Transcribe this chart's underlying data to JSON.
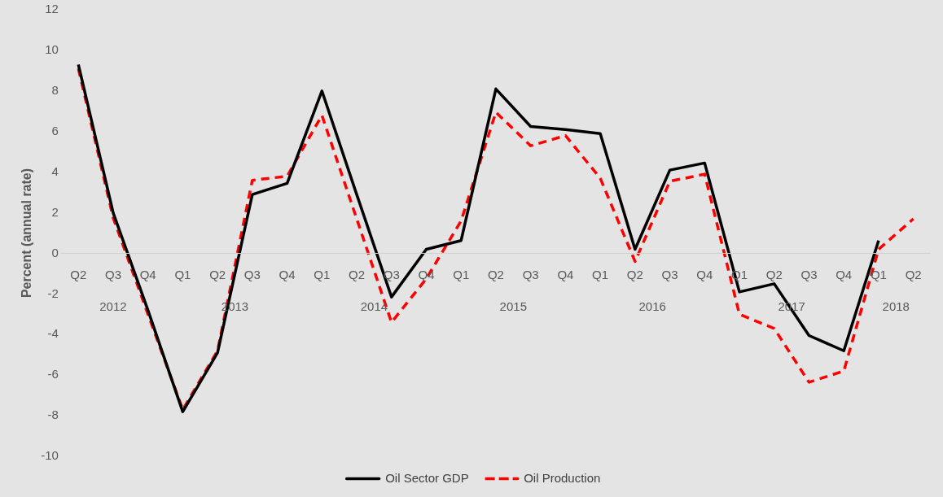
{
  "chart_data": {
    "type": "line",
    "ylabel": "Percent (annual rate)",
    "categories": [
      "Q2",
      "Q3",
      "Q4",
      "Q1",
      "Q2",
      "Q3",
      "Q4",
      "Q1",
      "Q2",
      "Q3",
      "Q4",
      "Q1",
      "Q2",
      "Q3",
      "Q4",
      "Q1",
      "Q2",
      "Q3",
      "Q4",
      "Q1",
      "Q2",
      "Q3",
      "Q4",
      "Q1",
      "Q2"
    ],
    "annotations": [
      "2012",
      "2013",
      "2014",
      "2015",
      "2016",
      "2017",
      "2018"
    ],
    "series": [
      {
        "name": "Oil Sector GDP",
        "color": "#000000",
        "line_style": "solid",
        "values": [
          9.3,
          2.0,
          -2.8,
          -7.8,
          -4.9,
          2.9,
          3.45,
          8.0,
          2.9,
          -2.15,
          0.2,
          0.63,
          8.1,
          6.25,
          6.1,
          5.9,
          0.2,
          4.1,
          4.45,
          -1.9,
          -1.5,
          -4.05,
          -4.8,
          0.63,
          null
        ]
      },
      {
        "name": "Oil Production",
        "color": "#ff0000",
        "line_style": "dashed",
        "values": [
          9.1,
          1.75,
          -3.0,
          -7.7,
          -4.8,
          3.6,
          3.8,
          6.8,
          1.7,
          -3.4,
          -1.25,
          1.6,
          6.95,
          5.3,
          5.8,
          3.7,
          -0.4,
          3.55,
          3.9,
          -3.0,
          -3.7,
          -6.35,
          -5.8,
          0.2,
          1.7
        ]
      }
    ],
    "ylim": [
      -10,
      12
    ],
    "yticks": [
      -10,
      -8,
      -6,
      -4,
      -2,
      0,
      2,
      4,
      6,
      8,
      10,
      12
    ],
    "grid": false,
    "legend": "bottom",
    "marker": "none"
  }
}
